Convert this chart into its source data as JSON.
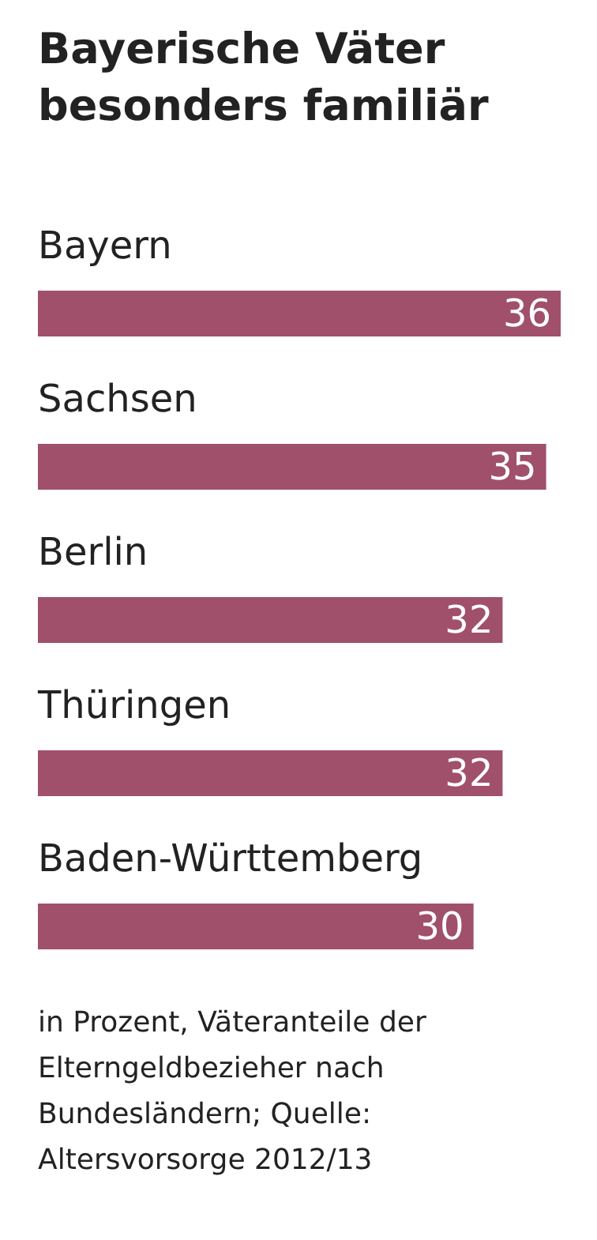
{
  "chart_data": {
    "type": "bar",
    "orientation": "horizontal",
    "title": "Bayerische Väter besonders familiär",
    "categories": [
      "Bayern",
      "Sachsen",
      "Berlin",
      "Thüringen",
      "Baden-Württemberg"
    ],
    "values": [
      36,
      35,
      32,
      32,
      30
    ],
    "color": "#a0506a",
    "data_labels": true,
    "tick_labels": false,
    "annotations": [
      "in Prozent, Väteranteile der Elterngeldbezieher nach Bundesländern; Quelle: Altersvorsorge 2012/13"
    ]
  }
}
